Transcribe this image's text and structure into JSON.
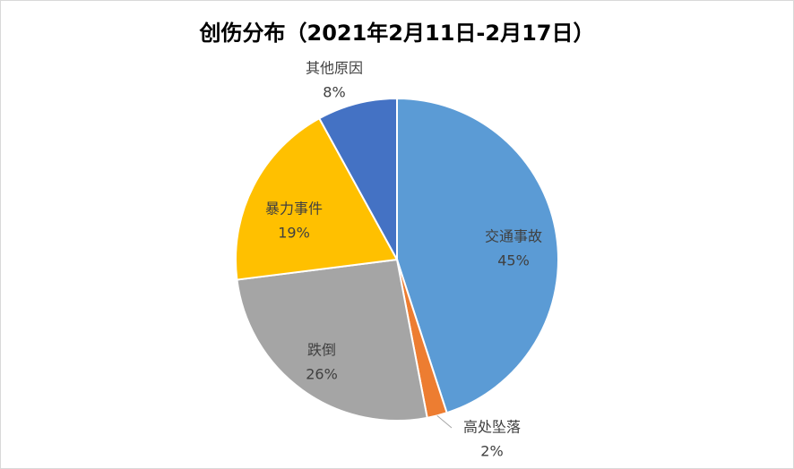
{
  "chart_data": {
    "type": "pie",
    "title": "创伤分布（2021年2月11日-2月17日）",
    "categories": [
      "交通事故",
      "高处坠落",
      "跌倒",
      "暴力事件",
      "其他原因"
    ],
    "values": [
      45,
      2,
      26,
      19,
      8
    ],
    "value_labels": [
      "45%",
      "2%",
      "26%",
      "19%",
      "8%"
    ],
    "colors": [
      "#5b9bd5",
      "#ed7d31",
      "#a5a5a5",
      "#ffc000",
      "#4472c4"
    ]
  }
}
